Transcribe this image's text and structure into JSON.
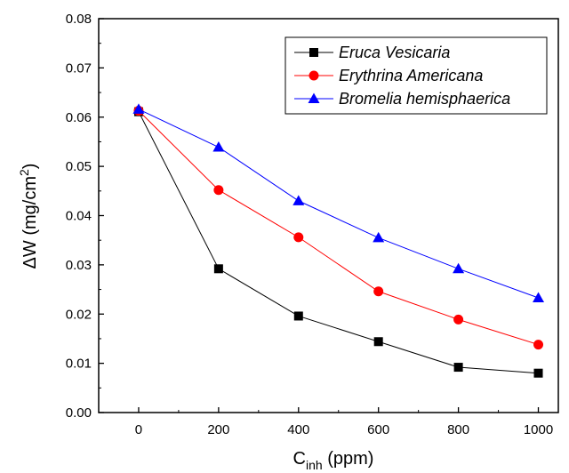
{
  "chart_data": {
    "type": "line",
    "xlabel": {
      "main": "C",
      "sub": "inh",
      "rest": " (ppm)"
    },
    "ylabel": {
      "main": "ΔW (mg/cm",
      "sup": "2",
      "rest": ")"
    },
    "x": [
      0,
      200,
      400,
      600,
      800,
      1000
    ],
    "xlim": [
      -100,
      1050
    ],
    "ylim": [
      0,
      0.08
    ],
    "xticks": [
      "0",
      "200",
      "400",
      "600",
      "800",
      "1000"
    ],
    "yticks": [
      "0.00",
      "0.01",
      "0.02",
      "0.03",
      "0.04",
      "0.05",
      "0.06",
      "0.07",
      "0.08"
    ],
    "grid": false,
    "legend_position": "top-right",
    "series": [
      {
        "name": "Eruca Vesicaria",
        "color": "#000000",
        "marker": "square",
        "values": [
          0.0611,
          0.0292,
          0.0196,
          0.0144,
          0.0092,
          0.008
        ]
      },
      {
        "name": "Erythrina Americana",
        "color": "#ff0000",
        "marker": "circle",
        "values": [
          0.0613,
          0.0452,
          0.0356,
          0.0246,
          0.0189,
          0.0138
        ]
      },
      {
        "name": "Bromelia hemisphaerica",
        "color": "#0000ff",
        "marker": "triangle",
        "values": [
          0.0616,
          0.0539,
          0.043,
          0.0355,
          0.0292,
          0.0233
        ]
      }
    ]
  }
}
